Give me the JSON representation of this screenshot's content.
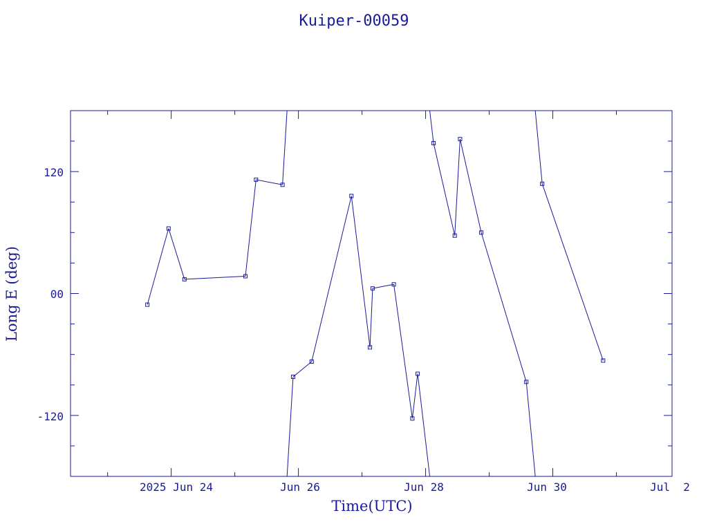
{
  "chart_data": {
    "type": "line",
    "title": "Kuiper-00059",
    "xlabel": "Time(UTC)",
    "ylabel": "Long E (deg)",
    "x_tick_labels": [
      "2025 Jun 24",
      "Jun 26",
      "Jun 28",
      "Jun 30",
      "Jul  2"
    ],
    "y_tick_labels": [
      "-120",
      "00",
      "120"
    ],
    "x_range": [
      "2025-06-22T10:00",
      "2025-07-01T21:00"
    ],
    "ylim": [
      -180,
      180
    ],
    "grid": false,
    "color": "#1a1a9a",
    "series": [
      {
        "marker": "square",
        "points": [
          [
            "2025-06-23T15:00",
            -11
          ],
          [
            "2025-06-23T23:00",
            64
          ],
          [
            "2025-06-24T05:00",
            14
          ],
          [
            "2025-06-25T04:00",
            17
          ],
          [
            "2025-06-25T08:00",
            112
          ],
          [
            "2025-06-25T18:00",
            107
          ],
          [
            "2025-06-25T22:00",
            -82
          ],
          [
            "2025-06-26T05:00",
            -67
          ],
          [
            "2025-06-26T20:00",
            96
          ],
          [
            "2025-06-27T03:00",
            -53
          ],
          [
            "2025-06-27T04:00",
            5
          ],
          [
            "2025-06-27T12:00",
            9
          ],
          [
            "2025-06-27T19:00",
            -123
          ],
          [
            "2025-06-27T21:00",
            -79
          ],
          [
            "2025-06-28T03:00",
            148
          ],
          [
            "2025-06-28T11:00",
            57
          ],
          [
            "2025-06-28T13:00",
            152
          ],
          [
            "2025-06-28T21:00",
            60
          ],
          [
            "2025-06-29T14:00",
            -87
          ],
          [
            "2025-06-29T20:00",
            108
          ],
          [
            "2025-06-30T19:00",
            -66
          ]
        ]
      }
    ]
  }
}
